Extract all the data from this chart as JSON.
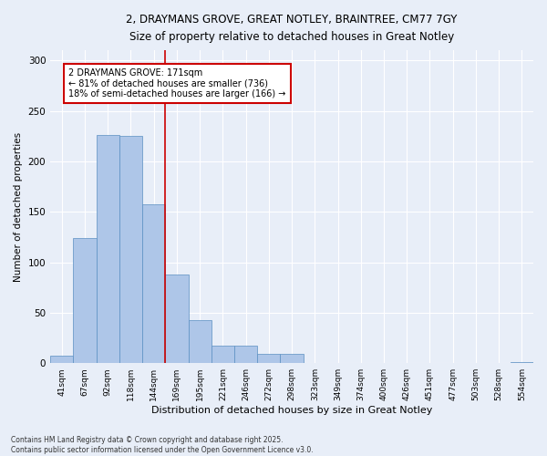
{
  "title1": "2, DRAYMANS GROVE, GREAT NOTLEY, BRAINTREE, CM77 7GY",
  "title2": "Size of property relative to detached houses in Great Notley",
  "xlabel": "Distribution of detached houses by size in Great Notley",
  "ylabel": "Number of detached properties",
  "categories": [
    "41sqm",
    "67sqm",
    "92sqm",
    "118sqm",
    "144sqm",
    "169sqm",
    "195sqm",
    "221sqm",
    "246sqm",
    "272sqm",
    "298sqm",
    "323sqm",
    "349sqm",
    "374sqm",
    "400sqm",
    "426sqm",
    "451sqm",
    "477sqm",
    "503sqm",
    "528sqm",
    "554sqm"
  ],
  "values": [
    7,
    124,
    226,
    225,
    157,
    88,
    43,
    17,
    17,
    9,
    9,
    0,
    0,
    0,
    0,
    0,
    0,
    0,
    0,
    0,
    1
  ],
  "bar_color": "#aec6e8",
  "bar_edge_color": "#5a8fc2",
  "property_line_x": 4.5,
  "annotation_text": "2 DRAYMANS GROVE: 171sqm\n← 81% of detached houses are smaller (736)\n18% of semi-detached houses are larger (166) →",
  "annotation_box_color": "#ffffff",
  "annotation_box_edge_color": "#cc0000",
  "vline_color": "#cc0000",
  "background_color": "#e8eef8",
  "grid_color": "#ffffff",
  "footnote": "Contains HM Land Registry data © Crown copyright and database right 2025.\nContains public sector information licensed under the Open Government Licence v3.0.",
  "ylim": [
    0,
    310
  ],
  "yticks": [
    0,
    50,
    100,
    150,
    200,
    250,
    300
  ]
}
